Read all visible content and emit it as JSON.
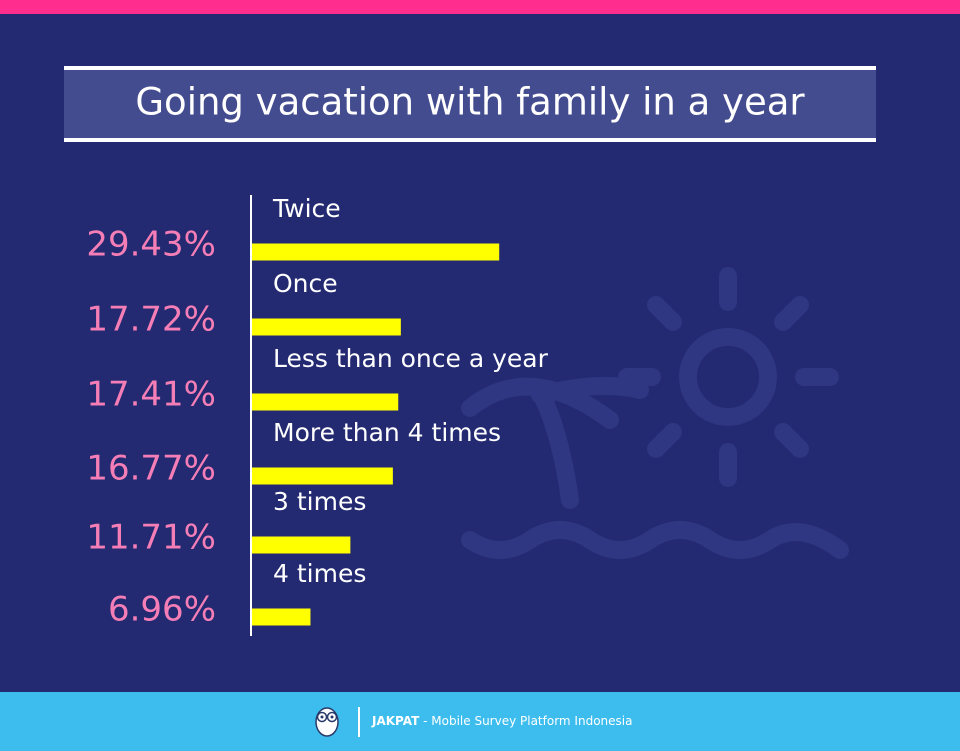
{
  "chart_data": {
    "type": "hbar",
    "title": "Going vacation with family in a year",
    "categories": [
      "Twice",
      "Once",
      "Less than once a year",
      "More than 4 times",
      "3 times",
      "4 times"
    ],
    "values": [
      29.43,
      17.72,
      17.41,
      16.77,
      11.71,
      6.96
    ],
    "value_labels": [
      "29.43%",
      "17.72%",
      "17.41%",
      "16.77%",
      "11.71%",
      "6.96%"
    ],
    "color": "#ffff00"
  },
  "footer": {
    "brand": "JAKPAT",
    "tagline": "- Mobile Survey Platform Indonesia"
  }
}
